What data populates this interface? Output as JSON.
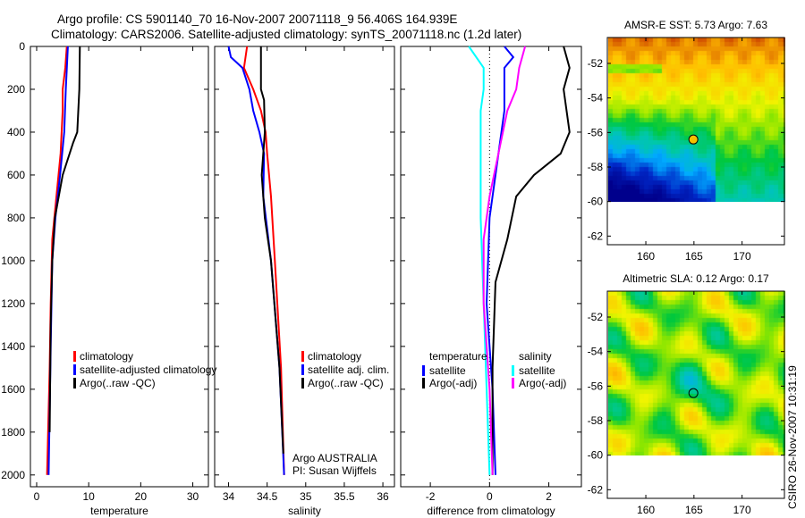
{
  "title": {
    "line1": "Argo profile: CS 5901140_70 16-Nov-2007 20071118_9 56.406S 164.939E",
    "line2": "Climatology: CARS2006. Satellite-adjusted climatology: synTS_20071118.nc (1.2d later)"
  },
  "colors": {
    "red": "#ff0000",
    "blue": "#0000ff",
    "black": "#000000",
    "cyan": "#00ffff",
    "magenta": "#ff00ff"
  },
  "chart_data": [
    {
      "type": "line",
      "xlabel": "temperature",
      "ylabel": "",
      "xlim": [
        -1.2,
        33
      ],
      "ylim": [
        2055,
        0
      ],
      "xticks": [
        "0",
        "10",
        "20",
        "30"
      ],
      "xtick_values": [
        0,
        10,
        20,
        30
      ],
      "yticks": [
        "0",
        "200",
        "400",
        "600",
        "800",
        "1000",
        "1200",
        "1400",
        "1600",
        "1800",
        "2000"
      ],
      "ytick_values": [
        0,
        200,
        400,
        600,
        800,
        1000,
        1200,
        1400,
        1600,
        1800,
        2000
      ],
      "legend": {
        "placement": "lower-right",
        "entries": [
          "climatology",
          "satellite-adjusted climatology",
          "Argo(..raw -QC)"
        ]
      },
      "series": [
        {
          "name": "climatology",
          "color": "#ff0000",
          "depth": [
            0,
            100,
            200,
            300,
            400,
            500,
            700,
            900,
            1200,
            1500,
            2000
          ],
          "values": [
            5.8,
            5.5,
            5.0,
            5.0,
            4.8,
            4.6,
            3.8,
            3.0,
            2.7,
            2.5,
            2.0
          ]
        },
        {
          "name": "satellite-adjusted climatology",
          "color": "#0000ff",
          "depth": [
            0,
            200,
            400,
            600,
            800,
            1000,
            1400,
            2000
          ],
          "values": [
            6.0,
            5.6,
            5.3,
            4.5,
            3.6,
            3.0,
            2.7,
            2.3
          ]
        },
        {
          "name": "Argo(..raw -QC)",
          "color": "#000000",
          "depth": [
            0,
            200,
            400,
            450,
            600,
            800,
            1000,
            1300,
            1800
          ],
          "values": [
            8.3,
            8.2,
            7.8,
            7.0,
            5.0,
            3.5,
            3.0,
            2.7,
            2.5
          ]
        }
      ]
    },
    {
      "type": "line",
      "xlabel": "salinity",
      "xlim": [
        33.82,
        36.15
      ],
      "ylim": [
        2055,
        0
      ],
      "xticks": [
        "34",
        "34.5",
        "35",
        "35.5",
        "36"
      ],
      "xtick_values": [
        34,
        34.5,
        35,
        35.5,
        36
      ],
      "legend": {
        "placement": "lower-right",
        "entries": [
          "climatology",
          "satellite adj. clim.",
          "Argo(..raw -QC)"
        ]
      },
      "annotation": [
        "Argo AUSTRALIA",
        "PI: Susan Wijffels"
      ],
      "series": [
        {
          "name": "climatology",
          "color": "#ff0000",
          "depth": [
            0,
            100,
            200,
            300,
            400,
            500,
            700,
            1000,
            1500,
            2000
          ],
          "values": [
            34.24,
            34.2,
            34.32,
            34.42,
            34.48,
            34.5,
            34.55,
            34.6,
            34.68,
            34.72
          ]
        },
        {
          "name": "satellite adj. clim.",
          "color": "#0000ff",
          "depth": [
            0,
            50,
            100,
            200,
            300,
            400,
            500,
            700,
            1000,
            1500,
            2000
          ],
          "values": [
            34.0,
            34.03,
            34.18,
            34.27,
            34.32,
            34.4,
            34.46,
            34.45,
            34.55,
            34.66,
            34.72
          ]
        },
        {
          "name": "Argo(..raw -QC)",
          "color": "#000000",
          "depth": [
            0,
            200,
            250,
            400,
            500,
            600,
            800,
            1000,
            1500,
            1900
          ],
          "values": [
            34.42,
            34.42,
            34.46,
            34.47,
            34.45,
            34.43,
            34.47,
            34.55,
            34.66,
            34.71
          ]
        }
      ]
    },
    {
      "type": "line",
      "xlabel": "difference from climatology",
      "xlim": [
        -3.0,
        3.1
      ],
      "ylim": [
        2055,
        0
      ],
      "xticks": [
        "-2",
        "0",
        "2"
      ],
      "xtick_values": [
        -2,
        0,
        2
      ],
      "legend": {
        "placement": "lower",
        "groups": [
          {
            "title": "temperature",
            "entries": [
              "satellite",
              "Argo(-adj)"
            ]
          },
          {
            "title": "salinity",
            "entries": [
              "satellite",
              "Argo(-adj)"
            ]
          }
        ]
      },
      "series": [
        {
          "name": "temperature satellite",
          "color": "#0000ff",
          "depth": [
            0,
            50,
            100,
            300,
            500,
            800,
            1200,
            1600,
            2000
          ],
          "values": [
            0.5,
            0.8,
            0.5,
            0.5,
            0.3,
            0.0,
            -0.1,
            0.1,
            0.2
          ]
        },
        {
          "name": "temperature Argo(-adj)",
          "color": "#000000",
          "depth": [
            0,
            100,
            200,
            300,
            400,
            500,
            600,
            700,
            900,
            1100,
            1500,
            2000
          ],
          "values": [
            2.5,
            2.7,
            2.5,
            2.6,
            2.7,
            2.4,
            1.5,
            0.9,
            0.6,
            0.2,
            0.1,
            0.1
          ]
        },
        {
          "name": "salinity satellite",
          "color": "#00ffff",
          "depth": [
            0,
            100,
            200,
            300,
            500,
            800,
            1200,
            1600,
            2000
          ],
          "values": [
            -0.7,
            -0.2,
            -0.2,
            -0.3,
            -0.3,
            -0.3,
            -0.2,
            -0.1,
            0.0
          ]
        },
        {
          "name": "salinity Argo(-adj)",
          "color": "#ff00ff",
          "depth": [
            0,
            100,
            200,
            300,
            500,
            700,
            900,
            1200,
            1600,
            2000
          ],
          "values": [
            1.2,
            1.0,
            0.9,
            0.6,
            0.3,
            0.0,
            -0.2,
            -0.2,
            0.0,
            0.1
          ]
        }
      ]
    },
    {
      "type": "heatmap",
      "title": "AMSR-E SST: 5.73 Argo: 7.63",
      "xlim": [
        156,
        174.4
      ],
      "ylim": [
        -62.5,
        -50.5
      ],
      "xticks": [
        "160",
        "165",
        "170"
      ],
      "xtick_values": [
        160,
        165,
        170
      ],
      "yticks": [
        "-52",
        "-54",
        "-56",
        "-58",
        "-60",
        "-62"
      ],
      "ytick_values": [
        -52,
        -54,
        -56,
        -58,
        -60,
        -62
      ],
      "marker": {
        "lon": 164.939,
        "lat": -56.406
      },
      "data_limit_lat": -60
    },
    {
      "type": "heatmap",
      "title": "Altimetric SLA: 0.12 Argo: 0.17",
      "xlim": [
        156,
        174.4
      ],
      "ylim": [
        -62.5,
        -50.5
      ],
      "xticks": [
        "160",
        "165",
        "170"
      ],
      "xtick_values": [
        160,
        165,
        170
      ],
      "yticks": [
        "-52",
        "-54",
        "-56",
        "-58",
        "-60",
        "-62"
      ],
      "ytick_values": [
        -52,
        -54,
        -56,
        -58,
        -60,
        -62
      ],
      "marker": {
        "lon": 164.939,
        "lat": -56.406
      },
      "data_limit_lat": -60
    }
  ],
  "footer": {
    "stamp": "CSIRO 26-Nov-2007 10:31:19"
  }
}
